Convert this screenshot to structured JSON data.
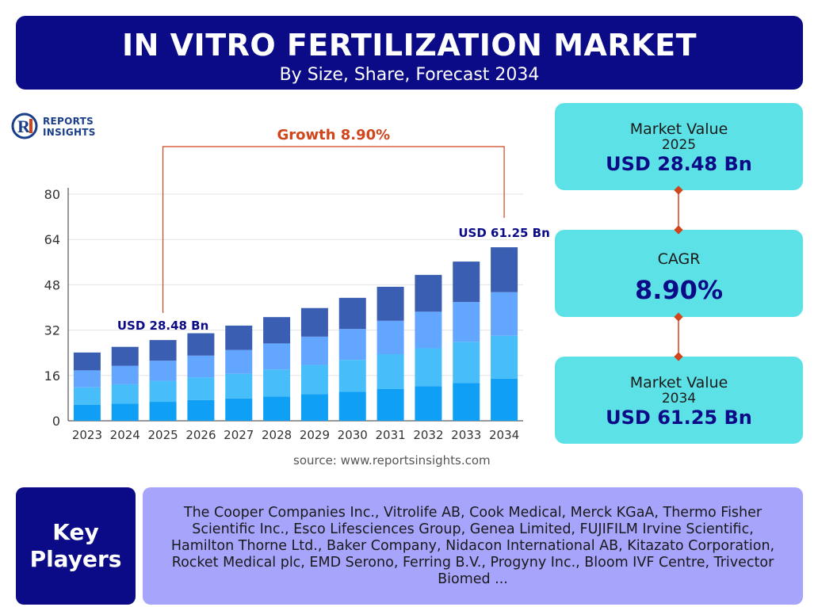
{
  "header": {
    "title": "IN VITRO FERTILIZATION MARKET",
    "subtitle": "By Size, Share, Forecast 2034"
  },
  "logo": {
    "mark": "RI",
    "line1": "REPORTS",
    "line2": "INSIGHTS"
  },
  "chart_data": {
    "type": "bar",
    "stacked": true,
    "categories": [
      "2023",
      "2024",
      "2025",
      "2026",
      "2027",
      "2028",
      "2029",
      "2030",
      "2031",
      "2032",
      "2033",
      "2034"
    ],
    "series": [
      {
        "name": "",
        "color": "#0f9ff5",
        "values": [
          5.6,
          6.1,
          6.7,
          7.3,
          7.9,
          8.6,
          9.4,
          10.2,
          11.2,
          12.2,
          13.3,
          14.9
        ]
      },
      {
        "name": "",
        "color": "#47bdf9",
        "values": [
          6.2,
          6.8,
          7.4,
          8.0,
          8.7,
          9.5,
          10.3,
          11.3,
          12.3,
          13.4,
          14.6,
          15.1
        ]
      },
      {
        "name": "",
        "color": "#62a6ff",
        "values": [
          6.0,
          6.5,
          7.1,
          7.7,
          8.4,
          9.2,
          10.0,
          10.9,
          11.8,
          12.9,
          14.0,
          15.4
        ]
      },
      {
        "name": "",
        "color": "#3a5eb1",
        "values": [
          6.3,
          6.7,
          7.3,
          7.9,
          8.6,
          9.3,
          10.1,
          11.0,
          12.0,
          13.0,
          14.3,
          15.85
        ]
      }
    ],
    "yticks": [
      0,
      16,
      32,
      48,
      64,
      80
    ],
    "ylim": [
      0,
      80
    ],
    "grid": true,
    "annotations": {
      "growth_label": "Growth 8.90%",
      "start_label": "USD 28.48 Bn",
      "end_label": "USD 61.25 Bn",
      "start_category": "2025",
      "end_category": "2034",
      "bracket_color": "#d0451b"
    }
  },
  "source": "source: www.reportsinsights.com",
  "cards": {
    "market_2025": {
      "label": "Market Value",
      "year": "2025",
      "value": "USD 28.48 Bn"
    },
    "cagr": {
      "label": "CAGR",
      "value": "8.90%"
    },
    "market_2034": {
      "label": "Market Value",
      "year": "2034",
      "value": "USD 61.25 Bn"
    }
  },
  "key_players": {
    "label_line1": "Key",
    "label_line2": "Players",
    "text": "The Cooper Companies Inc., Vitrolife AB, Cook Medical, Merck KGaA, Thermo Fisher Scientific Inc., Esco Lifesciences Group, Genea Limited, FUJIFILM Irvine Scientific, Hamilton Thorne Ltd., Baker Company, Nidacon International AB, Kitazato Corporation, Rocket Medical plc, EMD Serono, Ferring B.V., Progyny Inc., Bloom IVF Centre, Trivector Biomed ..."
  },
  "colors": {
    "navy": "#0b0b87",
    "cyan_card": "#5ce1e6",
    "lavender": "#a7a4fb",
    "accent_red": "#d0451b"
  }
}
